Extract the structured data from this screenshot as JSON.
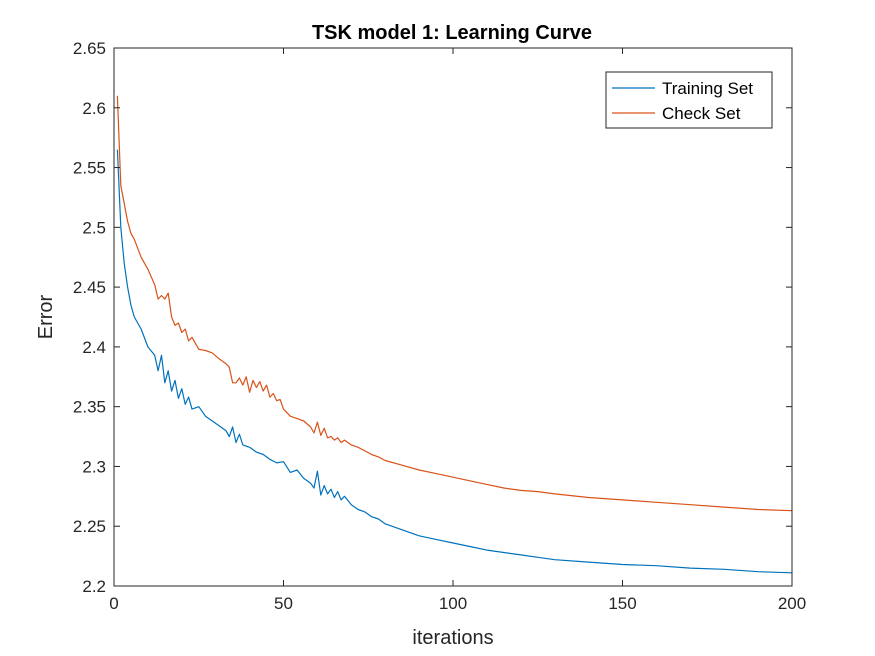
{
  "chart_data": {
    "type": "line",
    "title": "TSK model 1: Learning Curve",
    "xlabel": "iterations",
    "ylabel": "Error",
    "xlim": [
      0,
      200
    ],
    "ylim": [
      2.2,
      2.65
    ],
    "xticks": [
      0,
      50,
      100,
      150,
      200
    ],
    "yticks": [
      2.2,
      2.25,
      2.3,
      2.35,
      2.4,
      2.45,
      2.5,
      2.55,
      2.6,
      2.65
    ],
    "xtick_labels": [
      "0",
      "50",
      "100",
      "150",
      "200"
    ],
    "ytick_labels": [
      "2.2",
      "2.25",
      "2.3",
      "2.35",
      "2.4",
      "2.45",
      "2.5",
      "2.55",
      "2.6",
      "2.65"
    ],
    "grid": false,
    "legend_position": "top-right",
    "series": [
      {
        "name": "Training Set",
        "color": "#0072BD",
        "x": [
          1,
          2,
          3,
          4,
          5,
          6,
          8,
          10,
          12,
          13,
          14,
          15,
          16,
          17,
          18,
          19,
          20,
          21,
          22,
          23,
          25,
          27,
          29,
          31,
          33,
          34,
          35,
          36,
          37,
          38,
          40,
          42,
          44,
          46,
          48,
          50,
          52,
          54,
          56,
          58,
          59,
          60,
          61,
          62,
          63,
          64,
          65,
          66,
          67,
          68,
          70,
          72,
          74,
          76,
          78,
          80,
          85,
          90,
          95,
          100,
          105,
          110,
          115,
          120,
          125,
          130,
          140,
          150,
          160,
          170,
          180,
          190,
          200
        ],
        "y": [
          2.565,
          2.5,
          2.47,
          2.45,
          2.435,
          2.425,
          2.415,
          2.4,
          2.393,
          2.38,
          2.393,
          2.37,
          2.38,
          2.363,
          2.372,
          2.357,
          2.365,
          2.352,
          2.358,
          2.348,
          2.35,
          2.342,
          2.338,
          2.334,
          2.33,
          2.325,
          2.333,
          2.32,
          2.327,
          2.318,
          2.316,
          2.312,
          2.31,
          2.306,
          2.303,
          2.304,
          2.295,
          2.297,
          2.29,
          2.286,
          2.282,
          2.296,
          2.276,
          2.284,
          2.277,
          2.281,
          2.274,
          2.279,
          2.272,
          2.275,
          2.268,
          2.264,
          2.262,
          2.258,
          2.256,
          2.252,
          2.247,
          2.242,
          2.239,
          2.236,
          2.233,
          2.23,
          2.228,
          2.226,
          2.224,
          2.222,
          2.22,
          2.218,
          2.217,
          2.215,
          2.214,
          2.212,
          2.211
        ]
      },
      {
        "name": "Check Set",
        "color": "#D95319",
        "x": [
          1,
          2,
          3,
          4,
          5,
          6,
          8,
          10,
          12,
          13,
          14,
          15,
          16,
          17,
          18,
          19,
          20,
          21,
          22,
          23,
          25,
          27,
          29,
          31,
          33,
          34,
          35,
          36,
          37,
          38,
          39,
          40,
          41,
          42,
          43,
          44,
          45,
          46,
          47,
          48,
          49,
          50,
          52,
          54,
          56,
          58,
          59,
          60,
          61,
          62,
          63,
          64,
          65,
          66,
          67,
          68,
          70,
          72,
          74,
          76,
          78,
          80,
          85,
          90,
          95,
          100,
          105,
          110,
          115,
          120,
          125,
          130,
          140,
          150,
          160,
          170,
          180,
          190,
          200
        ],
        "y": [
          2.61,
          2.535,
          2.52,
          2.505,
          2.495,
          2.49,
          2.475,
          2.465,
          2.452,
          2.44,
          2.443,
          2.44,
          2.445,
          2.425,
          2.418,
          2.42,
          2.412,
          2.415,
          2.405,
          2.408,
          2.398,
          2.397,
          2.395,
          2.39,
          2.386,
          2.383,
          2.37,
          2.37,
          2.374,
          2.368,
          2.375,
          2.362,
          2.372,
          2.366,
          2.371,
          2.363,
          2.368,
          2.358,
          2.361,
          2.355,
          2.356,
          2.348,
          2.342,
          2.34,
          2.338,
          2.333,
          2.328,
          2.337,
          2.326,
          2.332,
          2.324,
          2.325,
          2.322,
          2.324,
          2.32,
          2.322,
          2.318,
          2.316,
          2.313,
          2.31,
          2.308,
          2.305,
          2.301,
          2.297,
          2.294,
          2.291,
          2.288,
          2.285,
          2.282,
          2.28,
          2.279,
          2.277,
          2.274,
          2.272,
          2.27,
          2.268,
          2.266,
          2.264,
          2.263
        ]
      }
    ]
  }
}
